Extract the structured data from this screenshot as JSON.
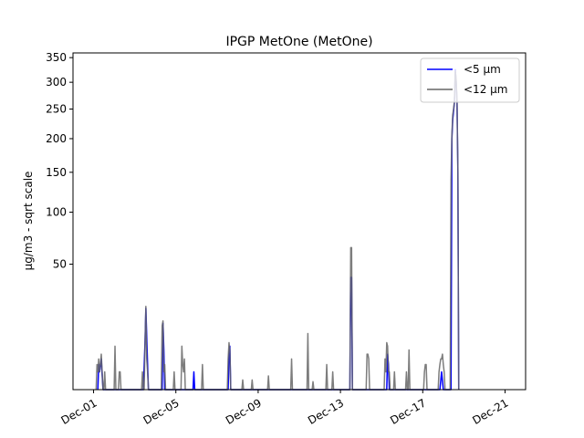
{
  "chart_data": {
    "type": "line",
    "title": "IPGP MetOne (MetOne)",
    "xlabel": "",
    "ylabel": "µg/m3 - sqrt scale",
    "y_scale": "sqrt",
    "ylim": [
      0,
      360
    ],
    "xlim": [
      "2019-11-30T00:00",
      "2019-12-22T00:00"
    ],
    "x_ticks": [
      {
        "date": "2019-12-01",
        "label": "Dec-01"
      },
      {
        "date": "2019-12-05",
        "label": "Dec-05"
      },
      {
        "date": "2019-12-09",
        "label": "Dec-09"
      },
      {
        "date": "2019-12-13",
        "label": "Dec-13"
      },
      {
        "date": "2019-12-17",
        "label": "Dec-17"
      },
      {
        "date": "2019-12-21",
        "label": "Dec-21"
      }
    ],
    "y_ticks": [
      50,
      100,
      150,
      200,
      250,
      300,
      350
    ],
    "grid": false,
    "legend_position": "top-right",
    "series": [
      {
        "name": "<5 µm",
        "color": "#0000ff",
        "points": [
          [
            "2019-12-01T05:00",
            0
          ],
          [
            "2019-12-01T06:00",
            2
          ],
          [
            "2019-12-01T07:00",
            1
          ],
          [
            "2019-12-01T09:00",
            3
          ],
          [
            "2019-12-01T11:00",
            0
          ],
          [
            "2019-12-03T10:00",
            0
          ],
          [
            "2019-12-03T12:00",
            7
          ],
          [
            "2019-12-03T13:00",
            21
          ],
          [
            "2019-12-03T15:00",
            2
          ],
          [
            "2019-12-03T16:00",
            0
          ],
          [
            "2019-12-04T08:00",
            0
          ],
          [
            "2019-12-04T09:00",
            14
          ],
          [
            "2019-12-04T10:00",
            5
          ],
          [
            "2019-12-04T11:00",
            0
          ],
          [
            "2019-12-05T20:00",
            0
          ],
          [
            "2019-12-05T21:00",
            1
          ],
          [
            "2019-12-05T22:00",
            0
          ],
          [
            "2019-12-07T13:00",
            0
          ],
          [
            "2019-12-07T14:00",
            4
          ],
          [
            "2019-12-07T15:00",
            6
          ],
          [
            "2019-12-07T16:00",
            0
          ],
          [
            "2019-12-13T11:00",
            0
          ],
          [
            "2019-12-13T12:00",
            40
          ],
          [
            "2019-12-13T13:00",
            40
          ],
          [
            "2019-12-13T14:00",
            0
          ],
          [
            "2019-12-15T06:00",
            0
          ],
          [
            "2019-12-15T07:00",
            4
          ],
          [
            "2019-12-15T08:00",
            2
          ],
          [
            "2019-12-15T09:00",
            0
          ],
          [
            "2019-12-17T20:00",
            0
          ],
          [
            "2019-12-17T22:00",
            1
          ],
          [
            "2019-12-18T00:00",
            0
          ],
          [
            "2019-12-18T09:00",
            0
          ],
          [
            "2019-12-18T10:00",
            200
          ],
          [
            "2019-12-18T11:00",
            232
          ],
          [
            "2019-12-18T12:00",
            247
          ],
          [
            "2019-12-18T13:00",
            262
          ],
          [
            "2019-12-18T14:00",
            325
          ],
          [
            "2019-12-18T15:00",
            300
          ],
          [
            "2019-12-18T16:00",
            262
          ],
          [
            "2019-12-18T17:00",
            150
          ],
          [
            "2019-12-18T18:00",
            0
          ]
        ]
      },
      {
        "name": "<12 µm",
        "color": "#666666",
        "points": [
          [
            "2019-12-01T03:00",
            0
          ],
          [
            "2019-12-01T04:00",
            2
          ],
          [
            "2019-12-01T05:00",
            1
          ],
          [
            "2019-12-01T06:00",
            3
          ],
          [
            "2019-12-01T07:00",
            1
          ],
          [
            "2019-12-01T08:00",
            2
          ],
          [
            "2019-12-01T09:00",
            4
          ],
          [
            "2019-12-01T10:00",
            1
          ],
          [
            "2019-12-01T11:00",
            0
          ],
          [
            "2019-12-01T12:00",
            0
          ],
          [
            "2019-12-01T13:00",
            1
          ],
          [
            "2019-12-01T14:00",
            0
          ],
          [
            "2019-12-02T00:00",
            0
          ],
          [
            "2019-12-02T01:00",
            6
          ],
          [
            "2019-12-02T02:00",
            0
          ],
          [
            "2019-12-02T05:00",
            0
          ],
          [
            "2019-12-02T06:00",
            1
          ],
          [
            "2019-12-02T07:00",
            1
          ],
          [
            "2019-12-02T08:00",
            0
          ],
          [
            "2019-12-03T08:00",
            0
          ],
          [
            "2019-12-03T09:00",
            1
          ],
          [
            "2019-12-03T10:00",
            0
          ],
          [
            "2019-12-03T11:00",
            0
          ],
          [
            "2019-12-03T12:00",
            6
          ],
          [
            "2019-12-03T13:00",
            22
          ],
          [
            "2019-12-03T14:00",
            3
          ],
          [
            "2019-12-03T15:00",
            1
          ],
          [
            "2019-12-03T16:00",
            0
          ],
          [
            "2019-12-04T07:00",
            0
          ],
          [
            "2019-12-04T08:00",
            13
          ],
          [
            "2019-12-04T09:00",
            15
          ],
          [
            "2019-12-04T10:00",
            1
          ],
          [
            "2019-12-04T11:00",
            2
          ],
          [
            "2019-12-04T12:00",
            0
          ],
          [
            "2019-12-04T21:00",
            0
          ],
          [
            "2019-12-04T22:00",
            1
          ],
          [
            "2019-12-04T23:00",
            0
          ],
          [
            "2019-12-05T06:00",
            0
          ],
          [
            "2019-12-05T07:00",
            6
          ],
          [
            "2019-12-05T08:00",
            2
          ],
          [
            "2019-12-05T09:00",
            1
          ],
          [
            "2019-12-05T10:00",
            3
          ],
          [
            "2019-12-05T11:00",
            0
          ],
          [
            "2019-12-06T06:00",
            0
          ],
          [
            "2019-12-06T07:00",
            2
          ],
          [
            "2019-12-06T08:00",
            0
          ],
          [
            "2019-12-07T12:00",
            0
          ],
          [
            "2019-12-07T13:00",
            3
          ],
          [
            "2019-12-07T14:00",
            7
          ],
          [
            "2019-12-07T15:00",
            5
          ],
          [
            "2019-12-07T16:00",
            0
          ],
          [
            "2019-12-08T05:00",
            0
          ],
          [
            "2019-12-08T06:00",
            0.3
          ],
          [
            "2019-12-08T07:00",
            0
          ],
          [
            "2019-12-08T16:00",
            0
          ],
          [
            "2019-12-08T17:00",
            0.3
          ],
          [
            "2019-12-08T18:00",
            0
          ],
          [
            "2019-12-09T11:00",
            0
          ],
          [
            "2019-12-09T12:00",
            0.6
          ],
          [
            "2019-12-09T13:00",
            0
          ],
          [
            "2019-12-10T14:00",
            0
          ],
          [
            "2019-12-10T15:00",
            3
          ],
          [
            "2019-12-10T16:00",
            0
          ],
          [
            "2019-12-11T09:00",
            0
          ],
          [
            "2019-12-11T10:00",
            10
          ],
          [
            "2019-12-11T11:00",
            0
          ],
          [
            "2019-12-11T15:00",
            0
          ],
          [
            "2019-12-11T16:00",
            0.2
          ],
          [
            "2019-12-11T17:00",
            0
          ],
          [
            "2019-12-12T07:00",
            0
          ],
          [
            "2019-12-12T08:00",
            2
          ],
          [
            "2019-12-12T09:00",
            0
          ],
          [
            "2019-12-12T14:00",
            0
          ],
          [
            "2019-12-12T15:00",
            1
          ],
          [
            "2019-12-12T16:00",
            0
          ],
          [
            "2019-12-13T11:00",
            0
          ],
          [
            "2019-12-13T12:00",
            64
          ],
          [
            "2019-12-13T13:00",
            64
          ],
          [
            "2019-12-13T14:00",
            0
          ],
          [
            "2019-12-14T06:00",
            0
          ],
          [
            "2019-12-14T07:00",
            4
          ],
          [
            "2019-12-14T08:00",
            4
          ],
          [
            "2019-12-14T09:00",
            3
          ],
          [
            "2019-12-14T10:00",
            0
          ],
          [
            "2019-12-15T03:00",
            0
          ],
          [
            "2019-12-15T04:00",
            3
          ],
          [
            "2019-12-15T05:00",
            1
          ],
          [
            "2019-12-15T06:00",
            7
          ],
          [
            "2019-12-15T07:00",
            6
          ],
          [
            "2019-12-15T08:00",
            1
          ],
          [
            "2019-12-15T09:00",
            1
          ],
          [
            "2019-12-15T10:00",
            0
          ],
          [
            "2019-12-15T14:00",
            0
          ],
          [
            "2019-12-15T15:00",
            1
          ],
          [
            "2019-12-15T16:00",
            0
          ],
          [
            "2019-12-16T04:00",
            0
          ],
          [
            "2019-12-16T05:00",
            1
          ],
          [
            "2019-12-16T06:00",
            0
          ],
          [
            "2019-12-16T07:00",
            0
          ],
          [
            "2019-12-16T08:00",
            5
          ],
          [
            "2019-12-16T09:00",
            0
          ],
          [
            "2019-12-17T01:00",
            0
          ],
          [
            "2019-12-17T02:00",
            1
          ],
          [
            "2019-12-17T03:00",
            2
          ],
          [
            "2019-12-17T04:00",
            2
          ],
          [
            "2019-12-17T05:00",
            0
          ],
          [
            "2019-12-17T18:00",
            0
          ],
          [
            "2019-12-17T19:00",
            1
          ],
          [
            "2019-12-17T20:00",
            2
          ],
          [
            "2019-12-17T21:00",
            3
          ],
          [
            "2019-12-17T22:00",
            3
          ],
          [
            "2019-12-17T23:00",
            4
          ],
          [
            "2019-12-18T00:00",
            2
          ],
          [
            "2019-12-18T01:00",
            1
          ],
          [
            "2019-12-18T02:00",
            0
          ],
          [
            "2019-12-18T08:00",
            0
          ],
          [
            "2019-12-18T09:00",
            140
          ],
          [
            "2019-12-18T10:00",
            205
          ],
          [
            "2019-12-18T11:00",
            240
          ],
          [
            "2019-12-18T12:00",
            250
          ],
          [
            "2019-12-18T13:00",
            265
          ],
          [
            "2019-12-18T14:00",
            322
          ],
          [
            "2019-12-18T15:00",
            305
          ],
          [
            "2019-12-18T16:00",
            265
          ],
          [
            "2019-12-18T17:00",
            155
          ],
          [
            "2019-12-18T18:00",
            0
          ]
        ]
      }
    ]
  }
}
